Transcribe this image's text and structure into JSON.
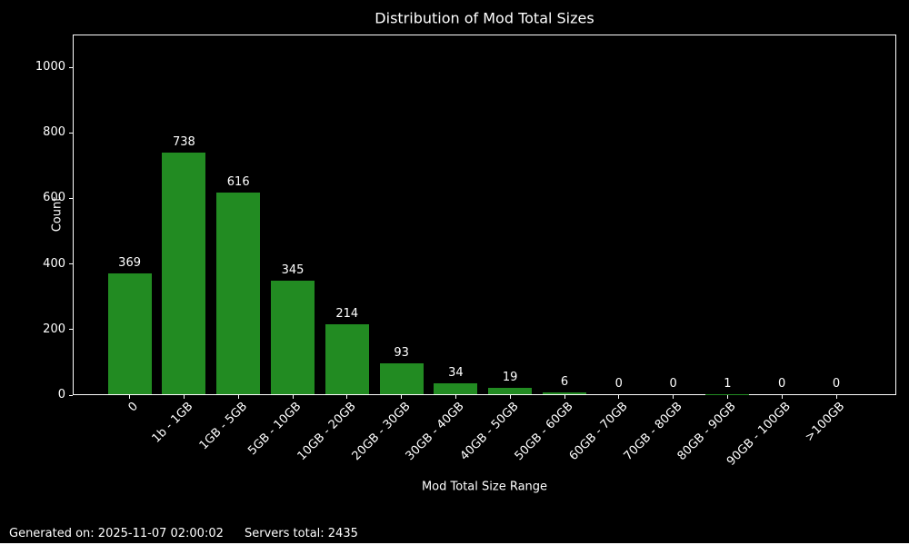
{
  "chart_data": {
    "type": "bar",
    "title": "Distribution of Mod Total Sizes",
    "categories": [
      "0",
      "1b - 1GB",
      "1GB - 5GB",
      "5GB - 10GB",
      "10GB - 20GB",
      "20GB - 30GB",
      "30GB - 40GB",
      "40GB - 50GB",
      "50GB - 60GB",
      "60GB - 70GB",
      "70GB - 80GB",
      "80GB - 90GB",
      "90GB - 100GB",
      ">100GB"
    ],
    "values": [
      369,
      738,
      616,
      345,
      214,
      93,
      34,
      19,
      6,
      0,
      0,
      1,
      0,
      0
    ],
    "xlabel": "Mod Total Size Range",
    "ylabel": "Count",
    "ylim": [
      0,
      1100
    ],
    "yticks": [
      0,
      200,
      400,
      600,
      800,
      1000
    ],
    "bar_labels_shown": true,
    "grid": false,
    "legend": null,
    "bar_color": "#228b22",
    "background_color": "#000000",
    "text_color": "#ffffff",
    "spine_color": "#ffffff"
  },
  "footer": {
    "generated": "Generated on: 2025-11-07 02:00:02",
    "servers_total": "Servers total: 2435"
  }
}
